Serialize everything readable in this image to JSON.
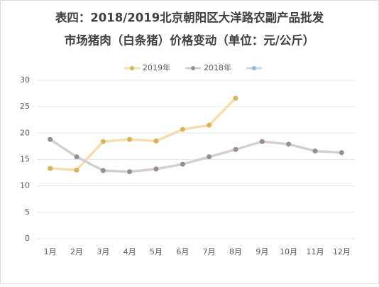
{
  "chart_data": {
    "type": "line",
    "title": [
      "表四：2018/2019北京朝阳区大洋路农副产品批发",
      "市场猪肉（白条猪）价格变动（单位：元/公斤）"
    ],
    "categories": [
      "1月",
      "2月",
      "3月",
      "4月",
      "5月",
      "6月",
      "7月",
      "8月",
      "9月",
      "10月",
      "11月",
      "12月"
    ],
    "series": [
      {
        "name": "2019年",
        "color": "#d9b25a",
        "line_color": "#f2dfad",
        "values": [
          13.3,
          13.0,
          18.4,
          18.8,
          18.5,
          20.7,
          21.5,
          26.6,
          null,
          null,
          null,
          null
        ]
      },
      {
        "name": "2018年",
        "color": "#9a8c8f",
        "line_color": "#d3cfd0",
        "values": [
          18.8,
          15.5,
          12.9,
          12.7,
          13.2,
          14.1,
          15.5,
          16.9,
          18.4,
          17.9,
          16.6,
          16.3
        ]
      },
      {
        "color": "#8fb6dc",
        "line_color": "#c4d9ee",
        "values": [
          null,
          null,
          null,
          null,
          null,
          null,
          null,
          null,
          null,
          null,
          null,
          null
        ]
      }
    ],
    "ylim": [
      0,
      30
    ],
    "yticks": [
      0,
      5,
      10,
      15,
      20,
      25,
      30
    ],
    "grid": true,
    "legend": "top"
  }
}
